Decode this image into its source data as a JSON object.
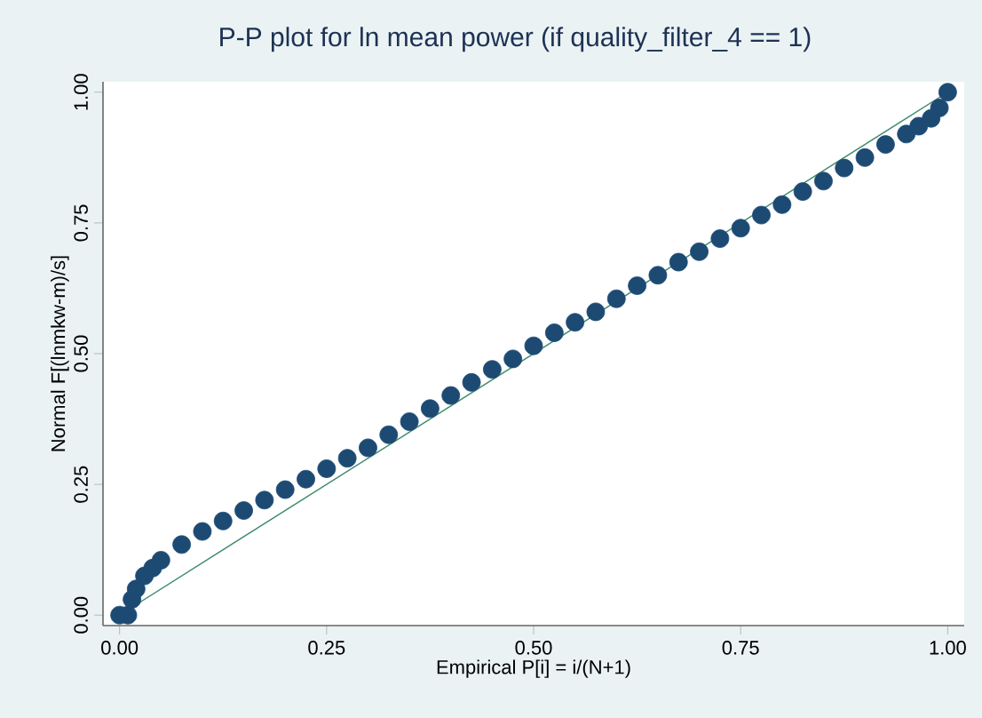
{
  "chart_data": {
    "type": "scatter",
    "title": "P-P plot for ln mean power (if quality_filter_4 == 1)",
    "xlabel": "Empirical P[i] = i/(N+1)",
    "ylabel": "Normal F[(lnmkw-m)/s]",
    "xlim": [
      -0.02,
      1.02
    ],
    "ylim": [
      -0.02,
      1.02
    ],
    "xticks": [
      {
        "value": 0,
        "label": "0.00"
      },
      {
        "value": 0.25,
        "label": "0.25"
      },
      {
        "value": 0.5,
        "label": "0.50"
      },
      {
        "value": 0.75,
        "label": "0.75"
      },
      {
        "value": 1,
        "label": "1.00"
      }
    ],
    "yticks": [
      {
        "value": 0,
        "label": "0.00"
      },
      {
        "value": 0.25,
        "label": "0.25"
      },
      {
        "value": 0.5,
        "label": "0.50"
      },
      {
        "value": 0.75,
        "label": "0.75"
      },
      {
        "value": 1,
        "label": "1.00"
      }
    ],
    "grid": false,
    "series": [
      {
        "marker": "circle",
        "color": "#1d4a73",
        "x": [
          0,
          0.01,
          0.015,
          0.02,
          0.03,
          0.04,
          0.05,
          0.075,
          0.1,
          0.125,
          0.15,
          0.175,
          0.2,
          0.225,
          0.25,
          0.275,
          0.3,
          0.325,
          0.35,
          0.375,
          0.4,
          0.425,
          0.45,
          0.475,
          0.5,
          0.525,
          0.55,
          0.575,
          0.6,
          0.625,
          0.65,
          0.675,
          0.7,
          0.725,
          0.75,
          0.775,
          0.8,
          0.825,
          0.85,
          0.875,
          0.9,
          0.925,
          0.95,
          0.965,
          0.98,
          0.99,
          1.0
        ],
        "values": [
          0,
          0,
          0.03,
          0.05,
          0.075,
          0.09,
          0.105,
          0.135,
          0.16,
          0.18,
          0.2,
          0.22,
          0.24,
          0.26,
          0.28,
          0.3,
          0.32,
          0.345,
          0.37,
          0.395,
          0.42,
          0.445,
          0.47,
          0.49,
          0.515,
          0.54,
          0.56,
          0.58,
          0.605,
          0.63,
          0.65,
          0.675,
          0.695,
          0.72,
          0.74,
          0.765,
          0.785,
          0.81,
          0.83,
          0.855,
          0.875,
          0.9,
          0.92,
          0.935,
          0.95,
          0.97,
          1.0
        ]
      },
      {
        "type": "line",
        "color": "#3c8a6c",
        "line_style": "solid",
        "marker": "none",
        "x": [
          0,
          1
        ],
        "values": [
          0,
          1
        ]
      }
    ]
  }
}
